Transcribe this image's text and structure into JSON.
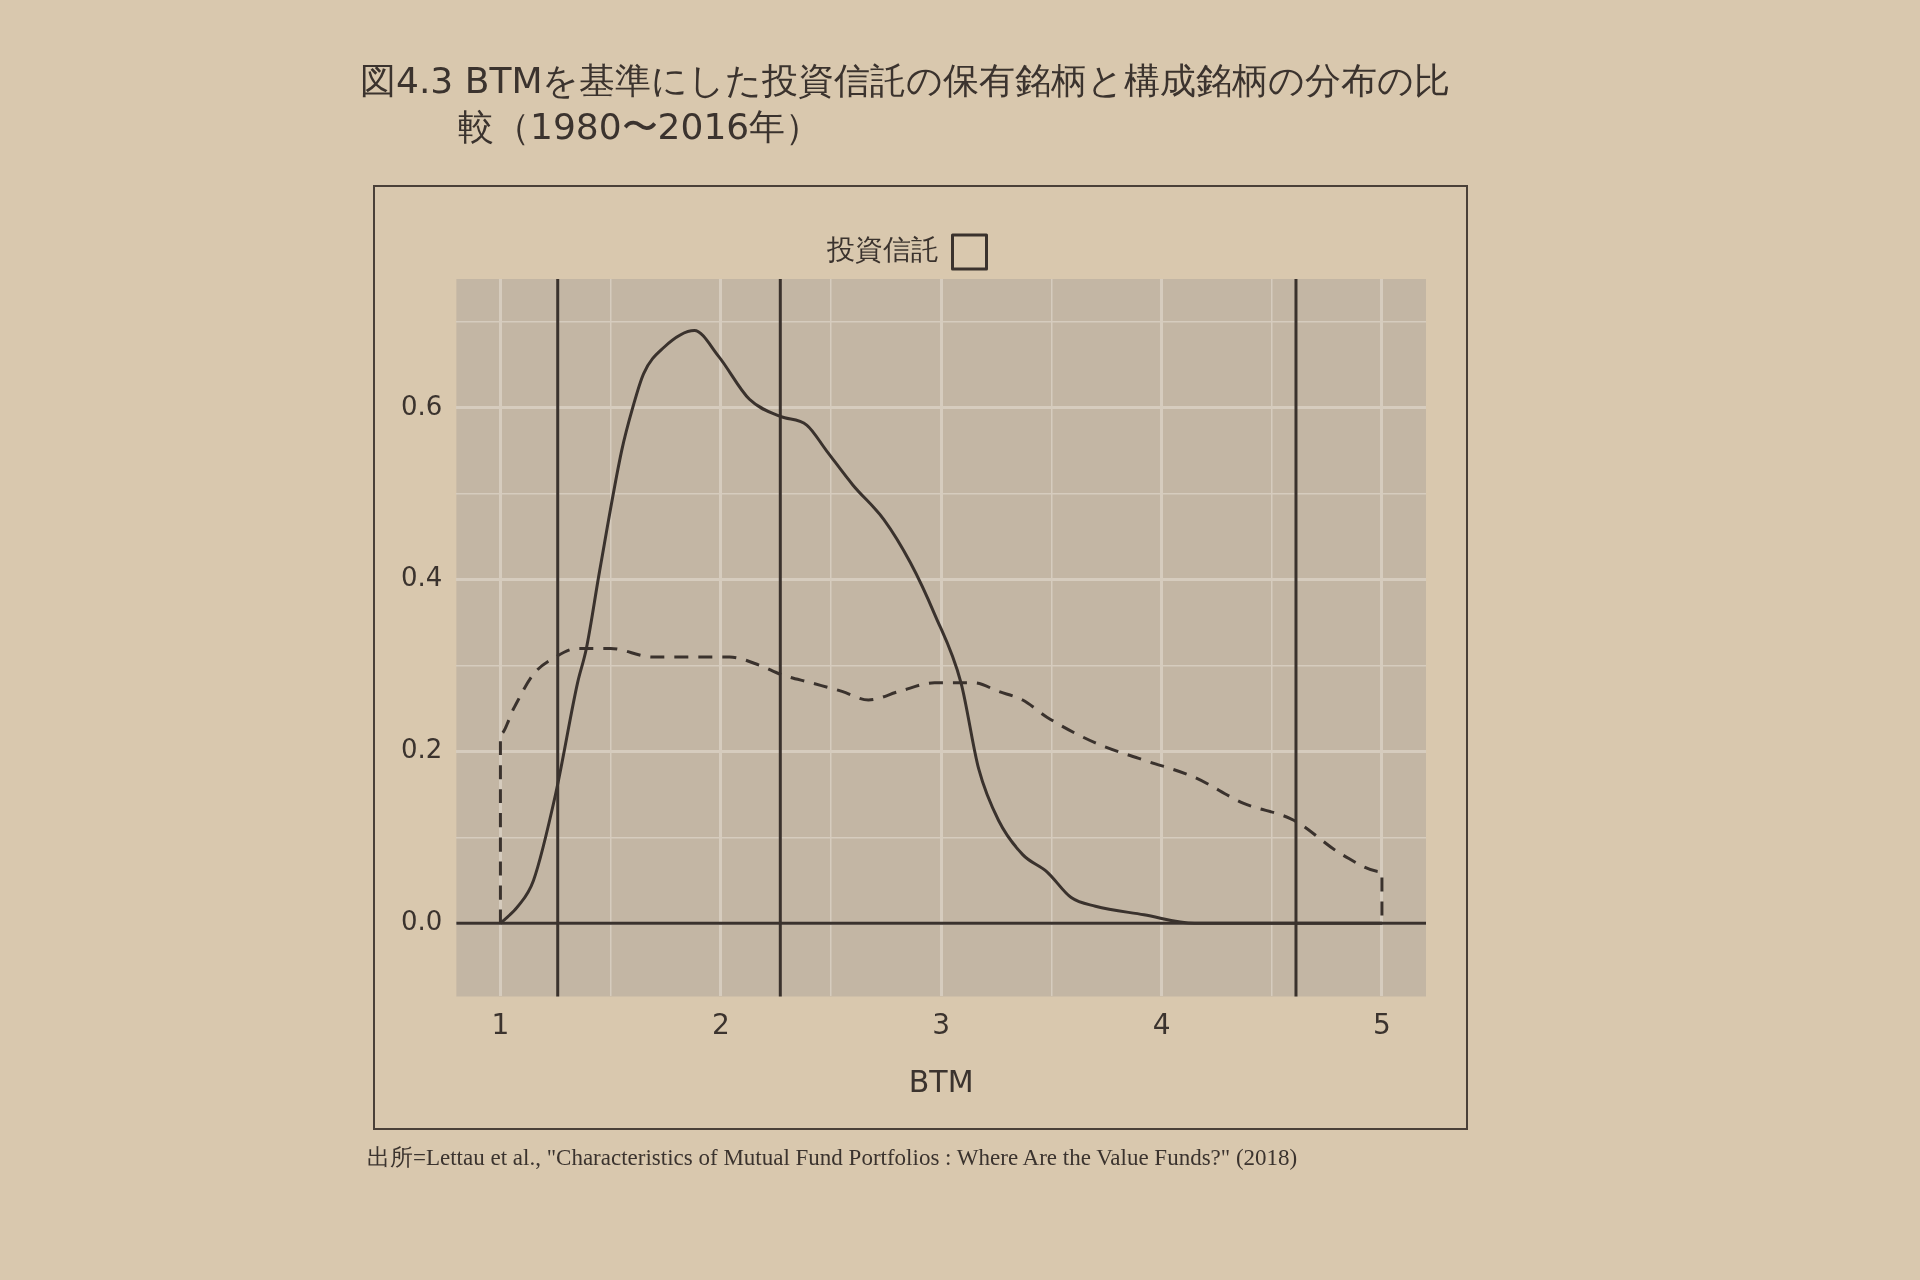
{
  "chart_data": {
    "type": "line",
    "title": "図4.3 BTMを基準にした投資信託の保有銘柄と構成銘柄の分布の比較（1980〜2016年）",
    "xlabel": "BTM",
    "annotations": [
      "出所=Lettau et al., \"Characteristics of Mutual Fund Portfolios : Where Are the Value Funds?\" (2018)"
    ],
    "series": [
      {
        "name": "投資信託",
        "color": "#3a322d",
        "x": [
          1,
          1.08,
          1.15,
          1.25,
          1.35,
          1.39,
          1.45,
          1.55,
          1.6,
          1.65,
          1.74,
          1.88,
          1.99,
          2.13,
          2.27,
          2.39,
          2.48,
          2.6,
          2.74,
          2.86,
          2.97,
          3.09,
          3.17,
          3.26,
          3.37,
          3.48,
          3.59,
          3.7,
          3.92,
          4.15,
          5
        ],
        "values": [
          0,
          0.02,
          0.05,
          0.15,
          0.28,
          0.32,
          0.41,
          0.55,
          0.6,
          0.64,
          0.67,
          0.69,
          0.66,
          0.61,
          0.59,
          0.58,
          0.55,
          0.51,
          0.47,
          0.42,
          0.36,
          0.28,
          0.18,
          0.12,
          0.08,
          0.06,
          0.03,
          0.02,
          0.01,
          0,
          0
        ]
      },
      {
        "color": "#3a322d",
        "line_style": "dashed",
        "x": [
          1,
          1,
          1.06,
          1.15,
          1.25,
          1.35,
          1.5,
          1.69,
          1.89,
          2.04,
          2.18,
          2.27,
          2.41,
          2.55,
          2.67,
          2.81,
          2.97,
          3.09,
          3.15,
          3.26,
          3.37,
          3.48,
          3.7,
          3.92,
          4.15,
          4.37,
          4.6,
          4.82,
          5,
          5
        ],
        "values": [
          0,
          0.22,
          0.25,
          0.29,
          0.31,
          0.32,
          0.32,
          0.31,
          0.31,
          0.31,
          0.3,
          0.29,
          0.28,
          0.27,
          0.26,
          0.27,
          0.28,
          0.28,
          0.28,
          0.27,
          0.26,
          0.24,
          0.21,
          0.19,
          0.17,
          0.14,
          0.12,
          0.08,
          0.06,
          0
        ]
      }
    ],
    "xlim": [
      0.8,
      5.2
    ],
    "xticks": [
      1,
      {
        "value": 1.5,
        "label": null
      },
      2,
      {
        "value": 2.5,
        "label": null
      },
      3,
      {
        "value": 3.5,
        "label": null
      },
      4,
      {
        "value": 4.5,
        "label": null
      },
      5
    ],
    "ylim": [
      -0.085,
      0.75
    ],
    "yticks": [
      {
        "value": 0,
        "label": "0.0"
      },
      {
        "value": 0.1,
        "label": null
      },
      {
        "value": 0.2,
        "label": "0.2"
      },
      {
        "value": 0.3,
        "label": null
      },
      {
        "value": 0.4,
        "label": "0.4"
      },
      {
        "value": 0.5,
        "label": null
      },
      {
        "value": 0.6,
        "label": "0.6"
      },
      {
        "value": 0.7,
        "label": null
      }
    ],
    "ref_lines": [
      {
        "axis": "x",
        "value": 1.26,
        "color": "#3a322d"
      },
      {
        "axis": "x",
        "value": 2.27,
        "color": "#3a322d"
      },
      {
        "axis": "x",
        "value": 4.61,
        "color": "#3a322d"
      },
      {
        "axis": "y",
        "value": 0,
        "color": "#3a322d"
      }
    ],
    "grid": true,
    "legend": "top",
    "marker": "none"
  }
}
